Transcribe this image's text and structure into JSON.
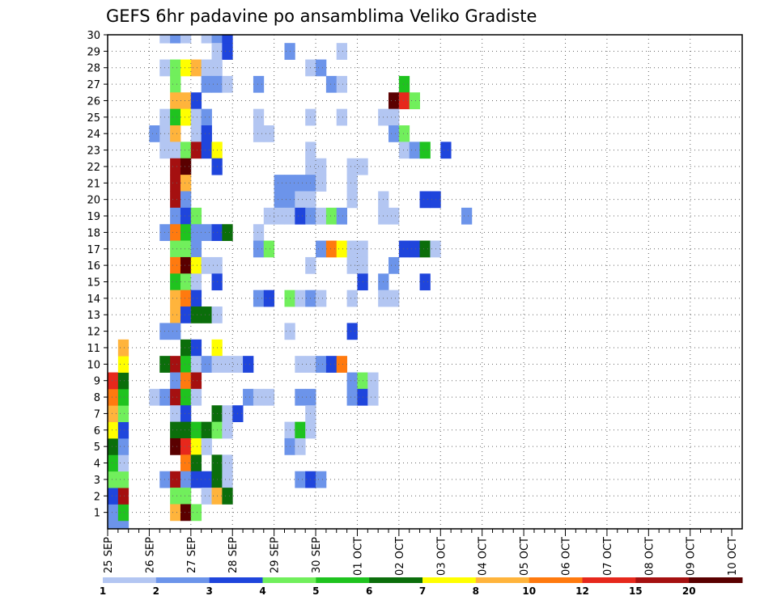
{
  "chart_data": {
    "type": "heatmap",
    "title": "GEFS 6hr padavine po ansamblima Veliko Gradiste",
    "xlabel": "",
    "ylabel": "",
    "x_tick_labels": [
      "25 SEP",
      "26 SEP",
      "27 SEP",
      "28 SEP",
      "29 SEP",
      "30 SEP",
      "01 OCT",
      "02 OCT",
      "03 OCT",
      "04 OCT",
      "05 OCT",
      "06 OCT",
      "07 OCT",
      "08 OCT",
      "09 OCT",
      "10 OCT"
    ],
    "y_tick_labels": [
      "1",
      "2",
      "3",
      "4",
      "5",
      "6",
      "7",
      "8",
      "9",
      "10",
      "11",
      "12",
      "13",
      "14",
      "15",
      "16",
      "17",
      "18",
      "19",
      "20",
      "21",
      "22",
      "23",
      "24",
      "25",
      "26",
      "27",
      "28",
      "29",
      "30"
    ],
    "members_range": [
      0,
      30
    ],
    "time_steps": 61,
    "time_step_hours": 6,
    "grid": true,
    "legend_position": "bottom",
    "colorbar": {
      "labels": [
        "1",
        "2",
        "3",
        "4",
        "5",
        "6",
        "7",
        "8",
        "10",
        "12",
        "15",
        "20"
      ],
      "colors": [
        "#b3c6f2",
        "#6c94ea",
        "#1f45dc",
        "#71ef5c",
        "#1fc31f",
        "#0b6e0b",
        "#ffff00",
        "#ffb43c",
        "#ff7a0f",
        "#e6281c",
        "#a51010",
        "#5a0000"
      ]
    },
    "cells": [
      [
        0,
        0,
        2
      ],
      [
        0,
        1,
        2
      ],
      [
        0,
        2,
        3
      ],
      [
        0,
        3,
        4
      ],
      [
        0,
        4,
        5
      ],
      [
        0,
        5,
        6
      ],
      [
        0,
        6,
        7
      ],
      [
        0,
        7,
        8
      ],
      [
        0,
        8,
        9
      ],
      [
        0,
        9,
        10
      ],
      [
        1,
        0,
        2
      ],
      [
        1,
        1,
        5
      ],
      [
        1,
        2,
        11
      ],
      [
        1,
        3,
        4
      ],
      [
        1,
        4,
        1
      ],
      [
        1,
        5,
        2
      ],
      [
        1,
        6,
        3
      ],
      [
        1,
        7,
        4
      ],
      [
        1,
        8,
        5
      ],
      [
        1,
        9,
        6
      ],
      [
        1,
        10,
        7
      ],
      [
        1,
        11,
        8
      ],
      [
        5,
        30,
        1
      ],
      [
        6,
        30,
        2
      ],
      [
        7,
        30,
        1
      ],
      [
        9,
        30,
        1
      ],
      [
        10,
        30,
        2
      ],
      [
        11,
        30,
        3
      ],
      [
        10,
        29,
        1
      ],
      [
        11,
        29,
        3
      ],
      [
        17,
        29,
        2
      ],
      [
        22,
        29,
        1
      ],
      [
        5,
        28,
        1
      ],
      [
        6,
        28,
        4
      ],
      [
        7,
        28,
        7
      ],
      [
        8,
        28,
        8
      ],
      [
        9,
        28,
        1
      ],
      [
        10,
        28,
        1
      ],
      [
        19,
        28,
        1
      ],
      [
        20,
        28,
        2
      ],
      [
        6,
        27,
        4
      ],
      [
        9,
        27,
        2
      ],
      [
        10,
        27,
        2
      ],
      [
        11,
        27,
        1
      ],
      [
        14,
        27,
        2
      ],
      [
        21,
        27,
        2
      ],
      [
        22,
        27,
        1
      ],
      [
        28,
        27,
        5
      ],
      [
        6,
        26,
        8
      ],
      [
        7,
        26,
        8
      ],
      [
        8,
        26,
        3
      ],
      [
        27,
        26,
        12
      ],
      [
        28,
        26,
        10
      ],
      [
        29,
        26,
        4
      ],
      [
        5,
        25,
        1
      ],
      [
        6,
        25,
        5
      ],
      [
        7,
        25,
        7
      ],
      [
        8,
        25,
        1
      ],
      [
        9,
        25,
        2
      ],
      [
        14,
        25,
        1
      ],
      [
        19,
        25,
        1
      ],
      [
        22,
        25,
        1
      ],
      [
        26,
        25,
        1
      ],
      [
        27,
        25,
        1
      ],
      [
        4,
        24,
        2
      ],
      [
        5,
        24,
        1
      ],
      [
        6,
        24,
        8
      ],
      [
        8,
        24,
        1
      ],
      [
        9,
        24,
        3
      ],
      [
        14,
        24,
        1
      ],
      [
        15,
        24,
        1
      ],
      [
        27,
        24,
        2
      ],
      [
        28,
        24,
        4
      ],
      [
        5,
        23,
        1
      ],
      [
        6,
        23,
        1
      ],
      [
        7,
        23,
        4
      ],
      [
        8,
        23,
        11
      ],
      [
        9,
        23,
        3
      ],
      [
        10,
        23,
        7
      ],
      [
        19,
        23,
        1
      ],
      [
        28,
        23,
        1
      ],
      [
        29,
        23,
        2
      ],
      [
        30,
        23,
        5
      ],
      [
        32,
        23,
        3
      ],
      [
        6,
        22,
        11
      ],
      [
        7,
        22,
        12
      ],
      [
        10,
        22,
        3
      ],
      [
        19,
        22,
        1
      ],
      [
        20,
        22,
        1
      ],
      [
        23,
        22,
        1
      ],
      [
        24,
        22,
        1
      ],
      [
        6,
        21,
        11
      ],
      [
        7,
        21,
        8
      ],
      [
        16,
        21,
        2
      ],
      [
        17,
        21,
        2
      ],
      [
        18,
        21,
        2
      ],
      [
        19,
        21,
        2
      ],
      [
        20,
        21,
        1
      ],
      [
        23,
        21,
        1
      ],
      [
        6,
        20,
        11
      ],
      [
        7,
        20,
        2
      ],
      [
        16,
        20,
        2
      ],
      [
        17,
        20,
        2
      ],
      [
        18,
        20,
        1
      ],
      [
        19,
        20,
        1
      ],
      [
        23,
        20,
        1
      ],
      [
        26,
        20,
        1
      ],
      [
        30,
        20,
        3
      ],
      [
        31,
        20,
        3
      ],
      [
        6,
        19,
        2
      ],
      [
        7,
        19,
        3
      ],
      [
        8,
        19,
        4
      ],
      [
        15,
        19,
        1
      ],
      [
        16,
        19,
        1
      ],
      [
        17,
        19,
        1
      ],
      [
        18,
        19,
        3
      ],
      [
        19,
        19,
        2
      ],
      [
        20,
        19,
        1
      ],
      [
        21,
        19,
        4
      ],
      [
        22,
        19,
        2
      ],
      [
        26,
        19,
        1
      ],
      [
        27,
        19,
        1
      ],
      [
        34,
        19,
        2
      ],
      [
        5,
        18,
        2
      ],
      [
        6,
        18,
        9
      ],
      [
        7,
        18,
        5
      ],
      [
        8,
        18,
        2
      ],
      [
        9,
        18,
        2
      ],
      [
        10,
        18,
        3
      ],
      [
        11,
        18,
        6
      ],
      [
        14,
        18,
        1
      ],
      [
        6,
        17,
        4
      ],
      [
        7,
        17,
        4
      ],
      [
        8,
        17,
        2
      ],
      [
        14,
        17,
        2
      ],
      [
        15,
        17,
        4
      ],
      [
        20,
        17,
        2
      ],
      [
        21,
        17,
        9
      ],
      [
        22,
        17,
        7
      ],
      [
        23,
        17,
        1
      ],
      [
        24,
        17,
        1
      ],
      [
        28,
        17,
        3
      ],
      [
        29,
        17,
        3
      ],
      [
        30,
        17,
        6
      ],
      [
        31,
        17,
        1
      ],
      [
        6,
        16,
        9
      ],
      [
        7,
        16,
        12
      ],
      [
        8,
        16,
        7
      ],
      [
        9,
        16,
        1
      ],
      [
        10,
        16,
        1
      ],
      [
        19,
        16,
        1
      ],
      [
        23,
        16,
        1
      ],
      [
        24,
        16,
        1
      ],
      [
        27,
        16,
        2
      ],
      [
        6,
        15,
        5
      ],
      [
        7,
        15,
        4
      ],
      [
        8,
        15,
        1
      ],
      [
        10,
        15,
        3
      ],
      [
        24,
        15,
        3
      ],
      [
        26,
        15,
        2
      ],
      [
        30,
        15,
        3
      ],
      [
        6,
        14,
        8
      ],
      [
        7,
        14,
        9
      ],
      [
        8,
        14,
        3
      ],
      [
        14,
        14,
        2
      ],
      [
        15,
        14,
        3
      ],
      [
        17,
        14,
        4
      ],
      [
        18,
        14,
        1
      ],
      [
        19,
        14,
        2
      ],
      [
        20,
        14,
        1
      ],
      [
        23,
        14,
        1
      ],
      [
        26,
        14,
        1
      ],
      [
        27,
        14,
        1
      ],
      [
        6,
        13,
        8
      ],
      [
        7,
        13,
        3
      ],
      [
        8,
        13,
        6
      ],
      [
        9,
        13,
        6
      ],
      [
        10,
        13,
        1
      ],
      [
        5,
        12,
        2
      ],
      [
        6,
        12,
        2
      ],
      [
        17,
        12,
        1
      ],
      [
        23,
        12,
        3
      ],
      [
        7,
        11,
        6
      ],
      [
        8,
        11,
        3
      ],
      [
        10,
        11,
        7
      ],
      [
        5,
        10,
        6
      ],
      [
        6,
        10,
        11
      ],
      [
        7,
        10,
        5
      ],
      [
        8,
        10,
        1
      ],
      [
        9,
        10,
        2
      ],
      [
        10,
        10,
        1
      ],
      [
        11,
        10,
        1
      ],
      [
        12,
        10,
        1
      ],
      [
        13,
        10,
        3
      ],
      [
        18,
        10,
        1
      ],
      [
        19,
        10,
        1
      ],
      [
        20,
        10,
        2
      ],
      [
        21,
        10,
        3
      ],
      [
        22,
        10,
        9
      ],
      [
        6,
        9,
        2
      ],
      [
        7,
        9,
        9
      ],
      [
        8,
        9,
        11
      ],
      [
        23,
        9,
        2
      ],
      [
        24,
        9,
        4
      ],
      [
        25,
        9,
        1
      ],
      [
        4,
        8,
        1
      ],
      [
        5,
        8,
        2
      ],
      [
        6,
        8,
        11
      ],
      [
        7,
        8,
        5
      ],
      [
        8,
        8,
        1
      ],
      [
        13,
        8,
        2
      ],
      [
        14,
        8,
        1
      ],
      [
        15,
        8,
        1
      ],
      [
        18,
        8,
        2
      ],
      [
        19,
        8,
        2
      ],
      [
        23,
        8,
        2
      ],
      [
        24,
        8,
        3
      ],
      [
        25,
        8,
        1
      ],
      [
        6,
        7,
        1
      ],
      [
        7,
        7,
        3
      ],
      [
        10,
        7,
        6
      ],
      [
        11,
        7,
        1
      ],
      [
        12,
        7,
        3
      ],
      [
        19,
        7,
        1
      ],
      [
        6,
        6,
        6
      ],
      [
        7,
        6,
        6
      ],
      [
        8,
        6,
        5
      ],
      [
        9,
        6,
        6
      ],
      [
        10,
        6,
        4
      ],
      [
        11,
        6,
        1
      ],
      [
        17,
        6,
        1
      ],
      [
        18,
        6,
        5
      ],
      [
        19,
        6,
        1
      ],
      [
        6,
        5,
        12
      ],
      [
        7,
        5,
        10
      ],
      [
        8,
        5,
        7
      ],
      [
        9,
        5,
        1
      ],
      [
        17,
        5,
        2
      ],
      [
        18,
        5,
        1
      ],
      [
        7,
        4,
        9
      ],
      [
        8,
        4,
        6
      ],
      [
        10,
        4,
        6
      ],
      [
        11,
        4,
        1
      ],
      [
        5,
        3,
        2
      ],
      [
        6,
        3,
        11
      ],
      [
        7,
        3,
        2
      ],
      [
        8,
        3,
        3
      ],
      [
        9,
        3,
        3
      ],
      [
        10,
        3,
        6
      ],
      [
        11,
        3,
        1
      ],
      [
        18,
        3,
        2
      ],
      [
        19,
        3,
        3
      ],
      [
        20,
        3,
        2
      ],
      [
        6,
        2,
        4
      ],
      [
        7,
        2,
        4
      ],
      [
        9,
        2,
        1
      ],
      [
        10,
        2,
        8
      ],
      [
        11,
        2,
        6
      ],
      [
        6,
        1,
        8
      ],
      [
        7,
        1,
        12
      ],
      [
        8,
        1,
        4
      ]
    ]
  }
}
